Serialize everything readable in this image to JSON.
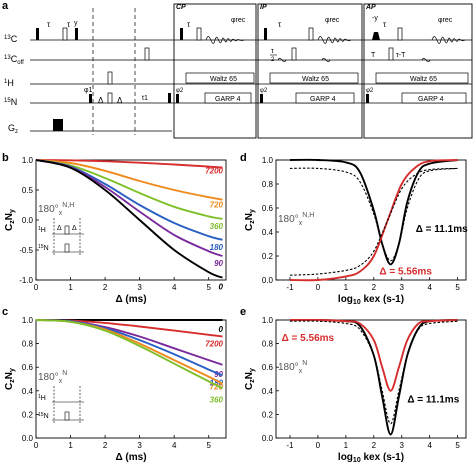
{
  "panel_a": {
    "letter": "a",
    "rows": [
      "13C",
      "13Coff",
      "1H",
      "15N",
      "Gz"
    ],
    "blocks": [
      {
        "title": "CP",
        "channel_labels": [
          "Waltz 65",
          "GARP 4"
        ]
      },
      {
        "title": "IP",
        "channel_labels": [
          "Waltz 65",
          "GARP 4"
        ]
      },
      {
        "title": "AP",
        "channel_labels": [
          "Waltz 65",
          "GARP 4"
        ]
      }
    ],
    "pulse_labels": {
      "tau": "τ",
      "y": "y",
      "phi1": "φ1",
      "delta": "Δ",
      "t1": "t1",
      "phi2": "φ2",
      "phirec": "φrec",
      "tau_half": "τ",
      "two": "2",
      "minus_y": "-y",
      "T": "T",
      "tau_minus_T": "τ-T"
    }
  },
  "chart_data": [
    {
      "panel": "b",
      "type": "line",
      "ylabel": "CzNy",
      "xlabel": "Δ (ms)",
      "xlim": [
        0,
        5.5
      ],
      "ylim": [
        -1,
        1
      ],
      "xticks": [
        0,
        1,
        2,
        3,
        4,
        5
      ],
      "yticks": [
        -1.0,
        -0.5,
        0.0,
        0.5,
        1.0
      ],
      "inset_label": "180°x N,H",
      "inset_channels": [
        "1H",
        "15N"
      ],
      "inset_delta": "Δ",
      "series": [
        {
          "name": "7200",
          "color": "#d62d2d",
          "x": [
            0,
            1,
            2,
            3,
            4,
            5,
            5.4
          ],
          "values": [
            1.0,
            0.995,
            0.98,
            0.955,
            0.925,
            0.89,
            0.875
          ]
        },
        {
          "name": "720",
          "color": "#f08a1c",
          "x": [
            0,
            1,
            2,
            3,
            4,
            5,
            5.4
          ],
          "values": [
            1.0,
            0.95,
            0.82,
            0.65,
            0.5,
            0.38,
            0.34
          ]
        },
        {
          "name": "360",
          "color": "#7fbf2a",
          "x": [
            0,
            1,
            2,
            3,
            4,
            5,
            5.4
          ],
          "values": [
            1.0,
            0.91,
            0.7,
            0.45,
            0.22,
            0.06,
            0.02
          ]
        },
        {
          "name": "180",
          "color": "#2a5fc4",
          "x": [
            0,
            1,
            2,
            3,
            4,
            5,
            5.4
          ],
          "values": [
            1.0,
            0.89,
            0.6,
            0.25,
            -0.05,
            -0.27,
            -0.33
          ]
        },
        {
          "name": "90",
          "color": "#7a2a9c",
          "x": [
            0,
            1,
            2,
            3,
            4,
            5,
            5.4
          ],
          "values": [
            1.0,
            0.88,
            0.55,
            0.14,
            -0.25,
            -0.52,
            -0.6
          ]
        },
        {
          "name": "0",
          "color": "#000000",
          "x": [
            0,
            1,
            2,
            3,
            4,
            5,
            5.4
          ],
          "values": [
            1.0,
            0.87,
            0.5,
            0.0,
            -0.5,
            -0.87,
            -0.96
          ]
        }
      ]
    },
    {
      "panel": "c",
      "type": "line",
      "ylabel": "CzNy",
      "xlabel": "Δ (ms)",
      "xlim": [
        0,
        5.5
      ],
      "ylim": [
        0,
        1
      ],
      "xticks": [
        0,
        1,
        2,
        3,
        4,
        5
      ],
      "yticks": [
        0.0,
        0.2,
        0.4,
        0.6,
        0.8,
        1.0
      ],
      "inset_label": "180°x N",
      "inset_channels": [
        "1H",
        "15N"
      ],
      "inset_delta": "Δ",
      "series": [
        {
          "name": "0",
          "color": "#000000",
          "x": [
            0,
            1,
            2,
            3,
            4,
            5,
            5.4
          ],
          "values": [
            1.0,
            1.0,
            1.0,
            1.0,
            1.0,
            1.0,
            1.0
          ]
        },
        {
          "name": "7200",
          "color": "#d62d2d",
          "x": [
            0,
            1,
            2,
            3,
            4,
            5,
            5.4
          ],
          "values": [
            1.0,
            0.995,
            0.975,
            0.945,
            0.91,
            0.875,
            0.86
          ]
        },
        {
          "name": "90",
          "color": "#7a2a9c",
          "x": [
            0,
            1,
            2,
            3,
            4,
            5,
            5.4
          ],
          "values": [
            1.0,
            0.99,
            0.94,
            0.86,
            0.76,
            0.66,
            0.62
          ]
        },
        {
          "name": "180",
          "color": "#2a5fc4",
          "x": [
            0,
            1,
            2,
            3,
            4,
            5,
            5.4
          ],
          "values": [
            1.0,
            0.99,
            0.93,
            0.83,
            0.71,
            0.58,
            0.53
          ]
        },
        {
          "name": "720",
          "color": "#f08a1c",
          "x": [
            0,
            1,
            2,
            3,
            4,
            5,
            5.4
          ],
          "values": [
            1.0,
            0.985,
            0.92,
            0.8,
            0.66,
            0.52,
            0.46
          ]
        },
        {
          "name": "360",
          "color": "#7fbf2a",
          "x": [
            0,
            1,
            2,
            3,
            4,
            5,
            5.4
          ],
          "values": [
            1.0,
            0.985,
            0.91,
            0.78,
            0.63,
            0.48,
            0.42
          ]
        }
      ]
    },
    {
      "panel": "d",
      "type": "line",
      "ylabel": "CzNy",
      "xlabel": "log10 kex (s-1)",
      "xlim": [
        -1.5,
        5.3
      ],
      "ylim": [
        0,
        1
      ],
      "xticks": [
        -1,
        0,
        1,
        2,
        3,
        4,
        5
      ],
      "yticks": [
        0.0,
        0.2,
        0.4,
        0.6,
        0.8,
        1.0
      ],
      "inset_label": "180°x N,H",
      "annotations": [
        {
          "text": "Δ = 11.1ms",
          "color": "#000000"
        },
        {
          "text": "Δ = 5.56ms",
          "color": "#d62d2d"
        }
      ],
      "series": [
        {
          "name": "",
          "color": "#000000",
          "style": "solid",
          "x": [
            -1,
            0,
            1,
            1.5,
            2,
            2.3,
            2.6,
            2.9,
            3.2,
            3.6,
            4,
            5
          ],
          "values": [
            1.0,
            1.0,
            0.98,
            0.9,
            0.58,
            0.3,
            0.13,
            0.3,
            0.65,
            0.9,
            0.97,
            1.0
          ]
        },
        {
          "name": "",
          "color": "#000000",
          "style": "dashed",
          "x": [
            -1,
            0,
            1,
            1.5,
            2,
            2.3,
            2.6,
            2.9,
            3.2,
            3.6,
            4,
            5
          ],
          "values": [
            0.93,
            0.93,
            0.9,
            0.82,
            0.55,
            0.3,
            0.16,
            0.3,
            0.6,
            0.84,
            0.91,
            0.93
          ]
        },
        {
          "name": "",
          "color": "#d62d2d",
          "style": "solid",
          "x": [
            -1,
            0,
            1,
            1.5,
            2,
            2.5,
            3,
            3.5,
            4,
            5
          ],
          "values": [
            0.0,
            0.0,
            0.03,
            0.07,
            0.2,
            0.5,
            0.8,
            0.94,
            0.99,
            1.0
          ]
        },
        {
          "name": "",
          "color": "#000000",
          "style": "dashed",
          "x": [
            -1,
            0,
            1,
            1.5,
            2,
            2.5,
            3,
            3.5,
            4,
            5
          ],
          "values": [
            0.04,
            0.05,
            0.08,
            0.12,
            0.24,
            0.5,
            0.76,
            0.88,
            0.92,
            0.93
          ]
        }
      ]
    },
    {
      "panel": "e",
      "type": "line",
      "ylabel": "CzNy",
      "xlabel": "log10 kex (s-1)",
      "xlim": [
        -1.5,
        5.3
      ],
      "ylim": [
        0,
        1
      ],
      "xticks": [
        -1,
        0,
        1,
        2,
        3,
        4,
        5
      ],
      "yticks": [
        0.0,
        0.2,
        0.4,
        0.6,
        0.8,
        1.0
      ],
      "inset_label": "180°x N",
      "annotations": [
        {
          "text": "Δ = 5.56ms",
          "color": "#d62d2d"
        },
        {
          "text": "Δ = 11.1ms",
          "color": "#000000"
        }
      ],
      "series": [
        {
          "name": "",
          "color": "#000000",
          "style": "solid",
          "x": [
            -1,
            0,
            1,
            1.5,
            2,
            2.3,
            2.6,
            2.9,
            3.2,
            3.6,
            4,
            5
          ],
          "values": [
            1.0,
            1.0,
            0.99,
            0.95,
            0.7,
            0.35,
            0.03,
            0.35,
            0.7,
            0.93,
            0.99,
            1.0
          ]
        },
        {
          "name": "",
          "color": "#d62d2d",
          "style": "solid",
          "x": [
            -1,
            0,
            1,
            1.5,
            2,
            2.3,
            2.6,
            2.9,
            3.2,
            3.6,
            4,
            5
          ],
          "values": [
            1.0,
            1.0,
            0.99,
            0.97,
            0.83,
            0.6,
            0.4,
            0.6,
            0.83,
            0.97,
            0.99,
            1.0
          ]
        },
        {
          "name": "",
          "color": "#000000",
          "style": "dashed",
          "x": [
            -1,
            0,
            1,
            1.5,
            2,
            2.3,
            2.6,
            2.9,
            3.2,
            3.6,
            4,
            5
          ],
          "values": [
            0.99,
            0.99,
            0.97,
            0.92,
            0.7,
            0.4,
            0.12,
            0.4,
            0.7,
            0.92,
            0.97,
            0.99
          ]
        }
      ]
    }
  ]
}
